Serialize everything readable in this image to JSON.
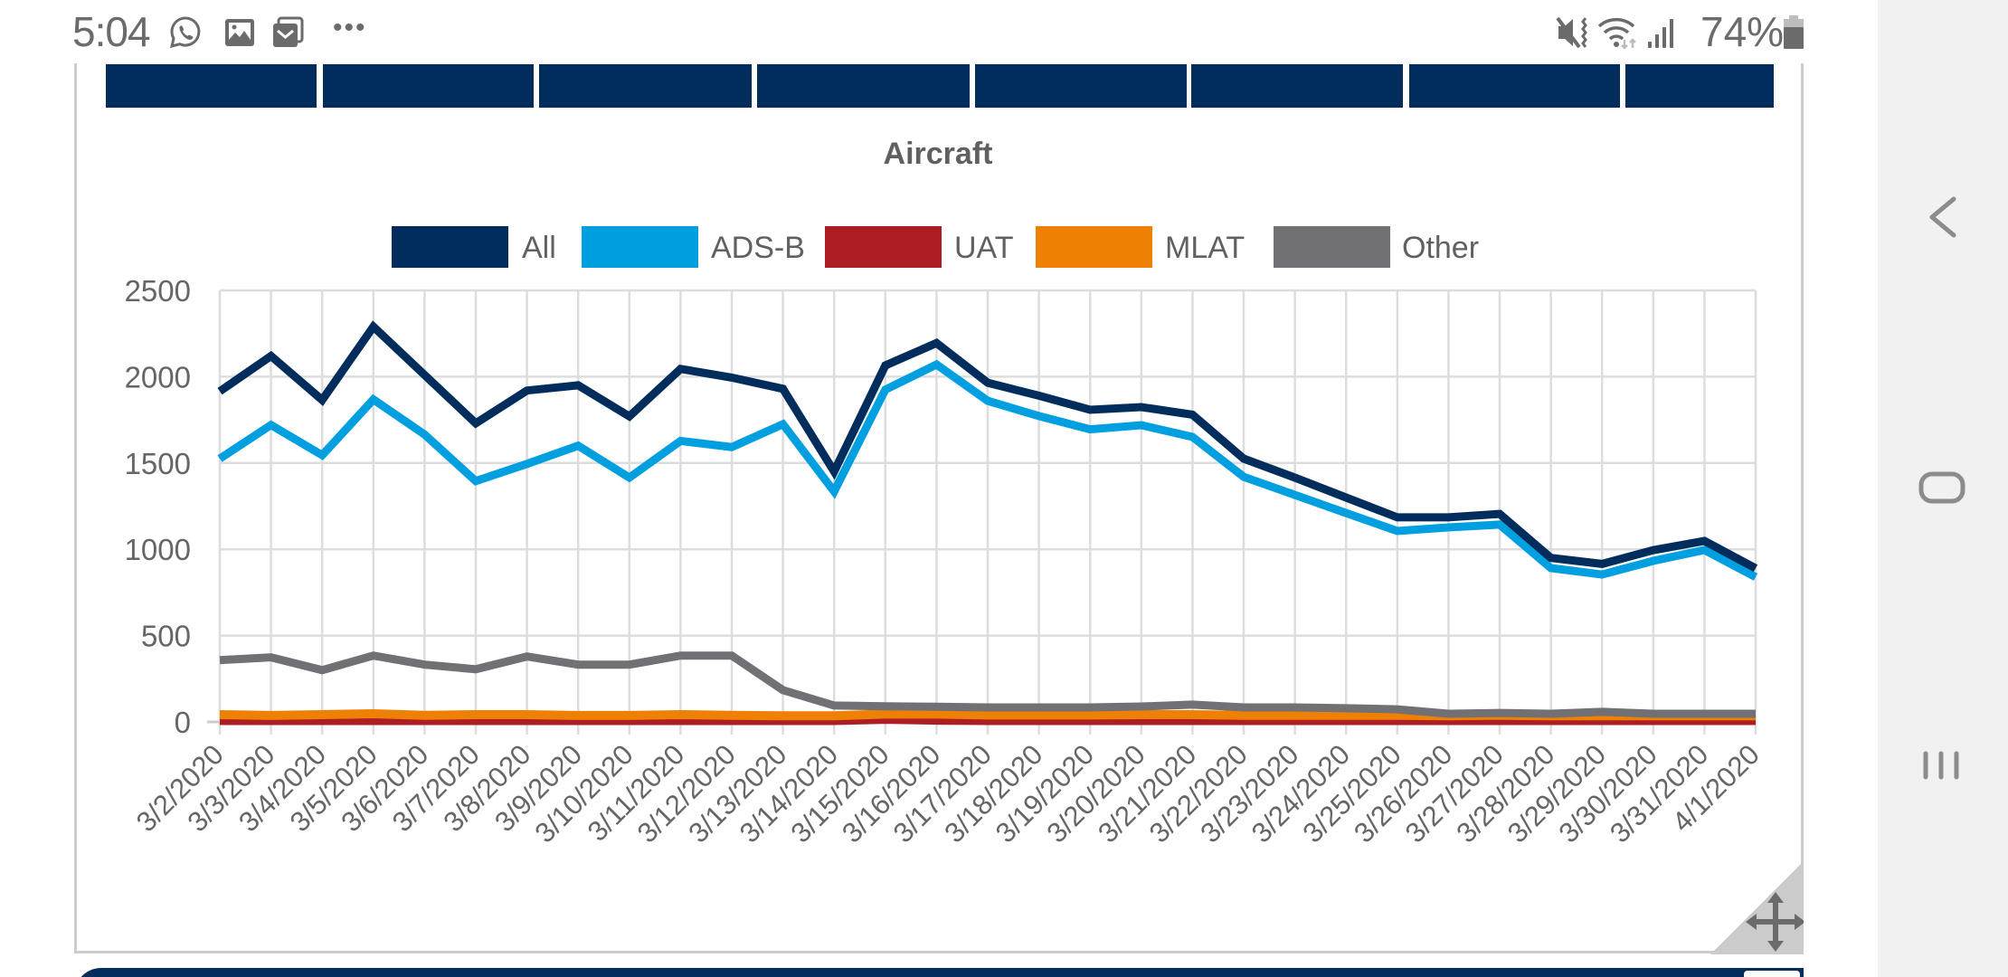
{
  "status_bar": {
    "time": "5:04",
    "left_icons": [
      "whatsapp-icon",
      "gallery-icon",
      "email-icon",
      "more-notifications-icon"
    ],
    "more_label": "•••",
    "right_icons": [
      "vibrate-mute-icon",
      "wifi-icon",
      "signal-icon"
    ],
    "battery_percent": "74%"
  },
  "tabs": {
    "count": 8,
    "labels": [
      "",
      "",
      "",
      "",
      "",
      "",
      "",
      ""
    ],
    "color": "#002d5c"
  },
  "nav_bar": {
    "back_icon": "back-chevron-icon",
    "home_icon": "home-icon",
    "recents_icon": "recents-icon"
  },
  "chart_data": {
    "type": "line",
    "title": "Aircraft",
    "xlabel": "",
    "ylabel": "",
    "ylim": [
      0,
      2500
    ],
    "yticks": [
      0,
      500,
      1000,
      1500,
      2000,
      2500
    ],
    "grid": true,
    "legend_position": "top-center",
    "categories": [
      "3/2/2020",
      "3/3/2020",
      "3/4/2020",
      "3/5/2020",
      "3/6/2020",
      "3/7/2020",
      "3/8/2020",
      "3/9/2020",
      "3/10/2020",
      "3/11/2020",
      "3/12/2020",
      "3/13/2020",
      "3/14/2020",
      "3/15/2020",
      "3/16/2020",
      "3/17/2020",
      "3/18/2020",
      "3/19/2020",
      "3/20/2020",
      "3/21/2020",
      "3/22/2020",
      "3/23/2020",
      "3/24/2020",
      "3/25/2020",
      "3/26/2020",
      "3/27/2020",
      "3/28/2020",
      "3/29/2020",
      "3/30/2020",
      "3/31/2020",
      "4/1/2020"
    ],
    "series": [
      {
        "name": "All",
        "color": "#002d5c",
        "values": [
          1915,
          2120,
          1865,
          2290,
          2010,
          1730,
          1920,
          1950,
          1770,
          2045,
          1995,
          1930,
          1450,
          2065,
          2195,
          1965,
          1890,
          1808,
          1824,
          1780,
          1525,
          1415,
          1300,
          1185,
          1185,
          1205,
          950,
          915,
          995,
          1048,
          890
        ]
      },
      {
        "name": "ADS-B",
        "color": "#009fe0",
        "values": [
          1525,
          1720,
          1545,
          1868,
          1665,
          1395,
          1495,
          1600,
          1415,
          1628,
          1592,
          1725,
          1335,
          1925,
          2070,
          1860,
          1772,
          1695,
          1719,
          1651,
          1420,
          1315,
          1210,
          1106,
          1127,
          1143,
          891,
          854,
          933,
          996,
          839
        ]
      },
      {
        "name": "UAT",
        "color": "#ad1d24",
        "values": [
          8,
          8,
          8,
          8,
          8,
          8,
          8,
          8,
          8,
          8,
          8,
          8,
          8,
          15,
          10,
          8,
          8,
          8,
          8,
          8,
          8,
          8,
          8,
          8,
          8,
          8,
          8,
          8,
          8,
          8,
          8
        ]
      },
      {
        "name": "MLAT",
        "color": "#ee8103",
        "values": [
          42,
          37,
          42,
          47,
          38,
          42,
          42,
          37,
          37,
          42,
          38,
          35,
          35,
          45,
          45,
          40,
          40,
          40,
          42,
          42,
          38,
          38,
          38,
          38,
          35,
          38,
          35,
          35,
          35,
          35,
          35
        ]
      },
      {
        "name": "Other",
        "color": "#707075",
        "values": [
          358,
          374,
          300,
          384,
          332,
          305,
          379,
          332,
          332,
          384,
          384,
          184,
          95,
          90,
          88,
          84,
          84,
          84,
          89,
          100,
          84,
          84,
          79,
          73,
          47,
          52,
          47,
          58,
          47,
          47,
          47
        ]
      }
    ]
  }
}
